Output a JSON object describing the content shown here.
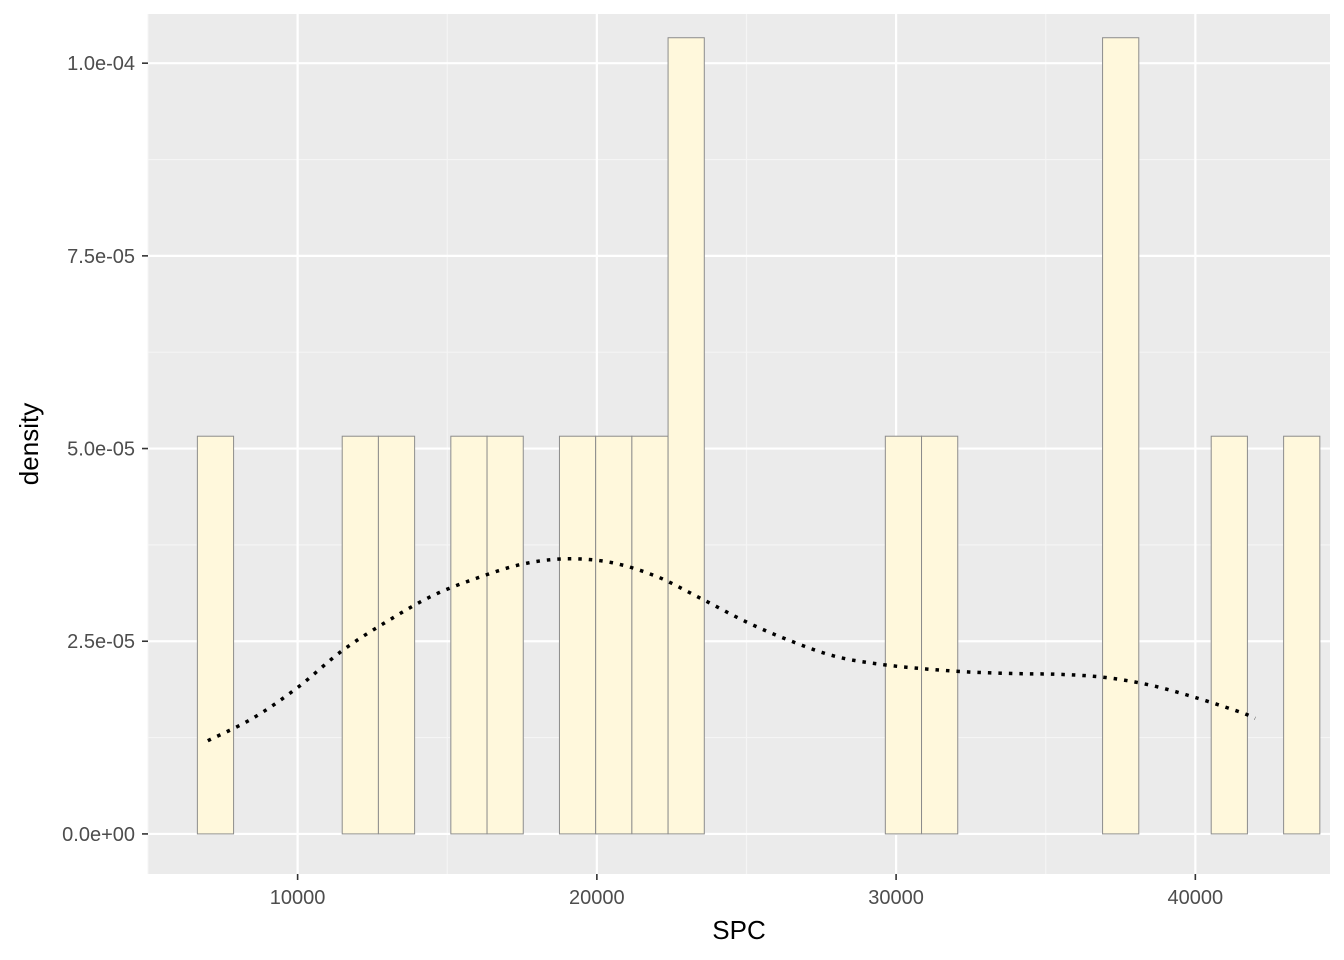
{
  "chart_data": {
    "type": "bar",
    "subtype": "histogram-with-density",
    "title": "",
    "xlabel": "SPC",
    "ylabel": "density",
    "xlim": [
      5000,
      44500
    ],
    "ylim": [
      -5.2e-06,
      0.00010638
    ],
    "x_ticks": [
      10000,
      20000,
      30000,
      40000
    ],
    "x_tick_labels": [
      "10000",
      "20000",
      "30000",
      "40000"
    ],
    "y_ticks": [
      0,
      2.5e-05,
      5e-05,
      7.5e-05,
      0.0001
    ],
    "y_tick_labels": [
      "0.0e+00",
      "2.5e-05",
      "5.0e-05",
      "7.5e-05",
      "1.0e-04"
    ],
    "grid": true,
    "legend": "none",
    "histogram": {
      "bin_width": 1210,
      "first_bin_start": 6650,
      "densities": [
        5.16e-05,
        0,
        0,
        0,
        5.16e-05,
        5.16e-05,
        0,
        5.16e-05,
        5.16e-05,
        0,
        5.16e-05,
        5.16e-05,
        5.16e-05,
        0.0001033,
        0,
        0,
        0,
        0,
        0,
        5.16e-05,
        5.16e-05,
        0,
        0,
        0,
        0,
        0.0001033,
        0,
        0,
        5.16e-05,
        0,
        5.16e-05
      ]
    },
    "density_curve": {
      "x": [
        7000,
        8500,
        10000,
        11500,
        13000,
        14500,
        16000,
        17500,
        19000,
        20500,
        22000,
        23500,
        25000,
        26500,
        28000,
        29500,
        31000,
        32500,
        34000,
        35500,
        37000,
        38500,
        40000,
        41500,
        42000
      ],
      "y": [
        1.21e-05,
        1.5e-05,
        1.9e-05,
        2.38e-05,
        2.76e-05,
        3.09e-05,
        3.32e-05,
        3.5e-05,
        3.57e-05,
        3.52e-05,
        3.34e-05,
        3.05e-05,
        2.75e-05,
        2.5e-05,
        2.3e-05,
        2.2e-05,
        2.14e-05,
        2.1e-05,
        2.08e-05,
        2.07e-05,
        2.03e-05,
        1.93e-05,
        1.77e-05,
        1.58e-05,
        1.5e-05
      ]
    },
    "colors": {
      "panel_background": "#ebebeb",
      "grid_major": "#ffffff",
      "grid_minor": "#f5f5f5",
      "bar_fill": "#fff8dc",
      "bar_stroke": "#8c8c8c",
      "curve": "#000000",
      "tick_label": "#4d4d4d",
      "axis_title": "#000000",
      "tick_mark": "#333333"
    }
  }
}
